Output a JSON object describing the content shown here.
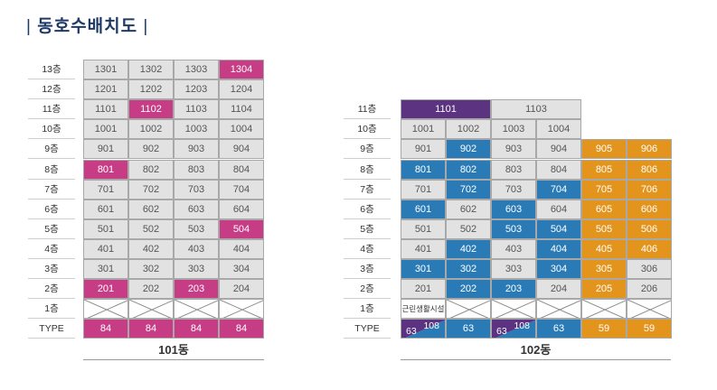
{
  "title": "동호수배치도",
  "title_bar_left": "|",
  "title_bar_right": "|",
  "building_101": {
    "name": "101동",
    "floor_labels": [
      "13층",
      "12층",
      "11층",
      "10층",
      "9층",
      "8층",
      "7층",
      "6층",
      "5층",
      "4층",
      "3층",
      "2층",
      "1층",
      "TYPE"
    ],
    "rows": [
      {
        "units": [
          {
            "label": "1301",
            "color": "gray"
          },
          {
            "label": "1302",
            "color": "gray"
          },
          {
            "label": "1303",
            "color": "gray"
          },
          {
            "label": "1304",
            "color": "pink"
          }
        ]
      },
      {
        "units": [
          {
            "label": "1201",
            "color": "gray"
          },
          {
            "label": "1202",
            "color": "gray"
          },
          {
            "label": "1203",
            "color": "gray"
          },
          {
            "label": "1204",
            "color": "gray"
          }
        ]
      },
      {
        "units": [
          {
            "label": "1101",
            "color": "gray"
          },
          {
            "label": "1102",
            "color": "pink"
          },
          {
            "label": "1103",
            "color": "gray"
          },
          {
            "label": "1104",
            "color": "gray"
          }
        ]
      },
      {
        "units": [
          {
            "label": "1001",
            "color": "gray"
          },
          {
            "label": "1002",
            "color": "gray"
          },
          {
            "label": "1003",
            "color": "gray"
          },
          {
            "label": "1004",
            "color": "gray"
          }
        ]
      },
      {
        "units": [
          {
            "label": "901",
            "color": "gray"
          },
          {
            "label": "902",
            "color": "gray"
          },
          {
            "label": "903",
            "color": "gray"
          },
          {
            "label": "904",
            "color": "gray"
          }
        ]
      },
      {
        "units": [
          {
            "label": "801",
            "color": "pink"
          },
          {
            "label": "802",
            "color": "gray"
          },
          {
            "label": "803",
            "color": "gray"
          },
          {
            "label": "804",
            "color": "gray"
          }
        ]
      },
      {
        "units": [
          {
            "label": "701",
            "color": "gray"
          },
          {
            "label": "702",
            "color": "gray"
          },
          {
            "label": "703",
            "color": "gray"
          },
          {
            "label": "704",
            "color": "gray"
          }
        ]
      },
      {
        "units": [
          {
            "label": "601",
            "color": "gray"
          },
          {
            "label": "602",
            "color": "gray"
          },
          {
            "label": "603",
            "color": "gray"
          },
          {
            "label": "604",
            "color": "gray"
          }
        ]
      },
      {
        "units": [
          {
            "label": "501",
            "color": "gray"
          },
          {
            "label": "502",
            "color": "gray"
          },
          {
            "label": "503",
            "color": "gray"
          },
          {
            "label": "504",
            "color": "pink"
          }
        ]
      },
      {
        "units": [
          {
            "label": "401",
            "color": "gray"
          },
          {
            "label": "402",
            "color": "gray"
          },
          {
            "label": "403",
            "color": "gray"
          },
          {
            "label": "404",
            "color": "gray"
          }
        ]
      },
      {
        "units": [
          {
            "label": "301",
            "color": "gray"
          },
          {
            "label": "302",
            "color": "gray"
          },
          {
            "label": "303",
            "color": "gray"
          },
          {
            "label": "304",
            "color": "gray"
          }
        ]
      },
      {
        "units": [
          {
            "label": "201",
            "color": "pink"
          },
          {
            "label": "202",
            "color": "gray"
          },
          {
            "label": "203",
            "color": "pink"
          },
          {
            "label": "204",
            "color": "gray"
          }
        ]
      },
      {
        "units": [
          {
            "label": "",
            "color": "x"
          },
          {
            "label": "",
            "color": "x"
          },
          {
            "label": "",
            "color": "x"
          },
          {
            "label": "",
            "color": "x"
          }
        ]
      },
      {
        "units": [
          {
            "label": "84",
            "color": "pink"
          },
          {
            "label": "84",
            "color": "pink"
          },
          {
            "label": "84",
            "color": "pink"
          },
          {
            "label": "84",
            "color": "pink"
          }
        ]
      }
    ]
  },
  "building_102": {
    "name": "102동",
    "floor_labels": [
      "11층",
      "10층",
      "9층",
      "8층",
      "7층",
      "6층",
      "5층",
      "4층",
      "3층",
      "2층",
      "1층",
      "TYPE"
    ],
    "top_row": [
      {
        "label": "1101",
        "color": "purple",
        "span": 2
      },
      {
        "label": "1103",
        "color": "gray",
        "span": 2
      },
      {
        "label": "",
        "color": "empty",
        "span": 2
      }
    ],
    "rows": [
      {
        "units": [
          {
            "label": "1001",
            "color": "gray"
          },
          {
            "label": "1002",
            "color": "gray"
          },
          {
            "label": "1003",
            "color": "gray"
          },
          {
            "label": "1004",
            "color": "gray"
          },
          {
            "label": "",
            "color": "empty"
          },
          {
            "label": "",
            "color": "empty"
          }
        ]
      },
      {
        "units": [
          {
            "label": "901",
            "color": "gray"
          },
          {
            "label": "902",
            "color": "blue"
          },
          {
            "label": "903",
            "color": "gray"
          },
          {
            "label": "904",
            "color": "gray"
          },
          {
            "label": "905",
            "color": "orange"
          },
          {
            "label": "906",
            "color": "orange"
          }
        ]
      },
      {
        "units": [
          {
            "label": "801",
            "color": "blue"
          },
          {
            "label": "802",
            "color": "blue"
          },
          {
            "label": "803",
            "color": "gray"
          },
          {
            "label": "804",
            "color": "gray"
          },
          {
            "label": "805",
            "color": "orange"
          },
          {
            "label": "806",
            "color": "orange"
          }
        ]
      },
      {
        "units": [
          {
            "label": "701",
            "color": "gray"
          },
          {
            "label": "702",
            "color": "blue"
          },
          {
            "label": "703",
            "color": "gray"
          },
          {
            "label": "704",
            "color": "blue"
          },
          {
            "label": "705",
            "color": "orange"
          },
          {
            "label": "706",
            "color": "orange"
          }
        ]
      },
      {
        "units": [
          {
            "label": "601",
            "color": "blue"
          },
          {
            "label": "602",
            "color": "gray"
          },
          {
            "label": "603",
            "color": "blue"
          },
          {
            "label": "604",
            "color": "gray"
          },
          {
            "label": "605",
            "color": "orange"
          },
          {
            "label": "606",
            "color": "orange"
          }
        ]
      },
      {
        "units": [
          {
            "label": "501",
            "color": "gray"
          },
          {
            "label": "502",
            "color": "gray"
          },
          {
            "label": "503",
            "color": "blue"
          },
          {
            "label": "504",
            "color": "blue"
          },
          {
            "label": "505",
            "color": "orange"
          },
          {
            "label": "506",
            "color": "orange"
          }
        ]
      },
      {
        "units": [
          {
            "label": "401",
            "color": "gray"
          },
          {
            "label": "402",
            "color": "blue"
          },
          {
            "label": "403",
            "color": "gray"
          },
          {
            "label": "404",
            "color": "blue"
          },
          {
            "label": "405",
            "color": "orange"
          },
          {
            "label": "406",
            "color": "orange"
          }
        ]
      },
      {
        "units": [
          {
            "label": "301",
            "color": "blue"
          },
          {
            "label": "302",
            "color": "blue"
          },
          {
            "label": "303",
            "color": "gray"
          },
          {
            "label": "304",
            "color": "blue"
          },
          {
            "label": "305",
            "color": "orange"
          },
          {
            "label": "306",
            "color": "gray"
          }
        ]
      },
      {
        "units": [
          {
            "label": "201",
            "color": "gray"
          },
          {
            "label": "202",
            "color": "blue"
          },
          {
            "label": "203",
            "color": "blue"
          },
          {
            "label": "204",
            "color": "gray"
          },
          {
            "label": "205",
            "color": "orange"
          },
          {
            "label": "206",
            "color": "gray"
          }
        ]
      },
      {
        "units": [
          {
            "label": "근린생활시설",
            "color": "facility"
          },
          {
            "label": "",
            "color": "x"
          },
          {
            "label": "",
            "color": "x"
          },
          {
            "label": "",
            "color": "x"
          },
          {
            "label": "",
            "color": "x"
          },
          {
            "label": "",
            "color": "x"
          }
        ]
      },
      {
        "units": [
          {
            "label": "63",
            "label2": "108",
            "color": "split"
          },
          {
            "label": "63",
            "color": "blue"
          },
          {
            "label": "63",
            "label2": "108",
            "color": "split"
          },
          {
            "label": "63",
            "color": "blue"
          },
          {
            "label": "59",
            "color": "orange"
          },
          {
            "label": "59",
            "color": "orange"
          }
        ]
      }
    ]
  },
  "colors": {
    "gray": "#e2e2e2",
    "pink": "#c63d86",
    "blue": "#2a7bb5",
    "orange": "#e3941d",
    "purple": "#5b3381",
    "title": "#1f3a66"
  }
}
